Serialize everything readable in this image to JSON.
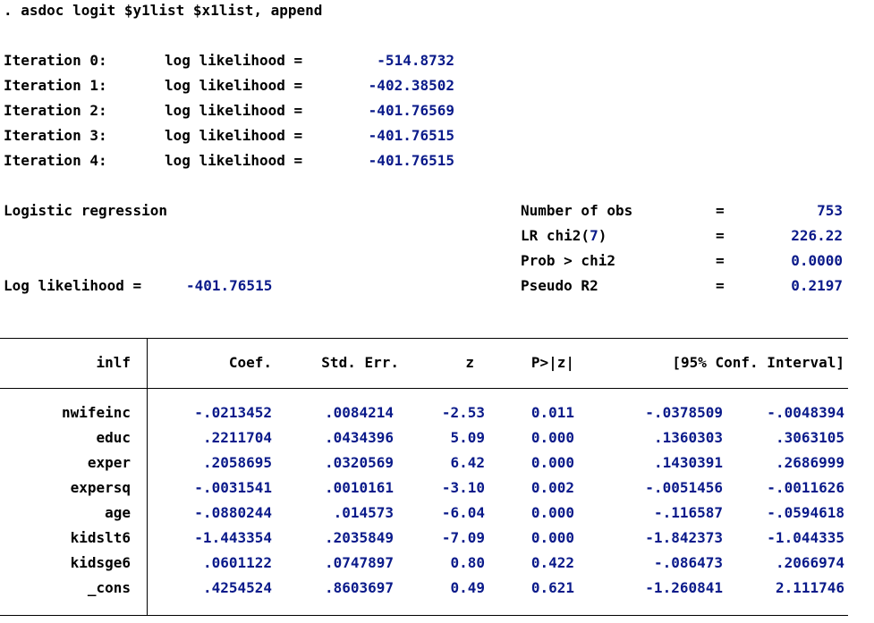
{
  "command": ". asdoc logit $y1list $x1list, append",
  "iterations": [
    {
      "label": "Iteration 0:",
      "ll_label": "log likelihood =",
      "value": "-514.8732"
    },
    {
      "label": "Iteration 1:",
      "ll_label": "log likelihood =",
      "value": "-402.38502"
    },
    {
      "label": "Iteration 2:",
      "ll_label": "log likelihood =",
      "value": "-401.76569"
    },
    {
      "label": "Iteration 3:",
      "ll_label": "log likelihood =",
      "value": "-401.76515"
    },
    {
      "label": "Iteration 4:",
      "ll_label": "log likelihood =",
      "value": "-401.76515"
    }
  ],
  "model": {
    "title": "Logistic regression",
    "ll_label": "Log likelihood =",
    "ll_value": "-401.76515"
  },
  "stats": [
    {
      "label": "Number of obs",
      "eq": "=",
      "value": "753"
    },
    {
      "label": "LR chi2(",
      "df": "7",
      "label_close": ")",
      "eq": "=",
      "value": "226.22"
    },
    {
      "label": "Prob > chi2",
      "eq": "=",
      "value": "0.0000"
    },
    {
      "label": "Pseudo R2",
      "eq": "=",
      "value": "0.2197"
    }
  ],
  "table": {
    "depvar": "inlf",
    "headers": [
      "Coef.",
      "Std. Err.",
      "z",
      "P>|z|",
      "[95% Conf. Interval]"
    ],
    "rows": [
      {
        "name": "nwifeinc",
        "coef": "-.0213452",
        "se": ".0084214",
        "z": "-2.53",
        "p": "0.011",
        "lo": "-.0378509",
        "hi": "-.0048394"
      },
      {
        "name": "educ",
        "coef": ".2211704",
        "se": ".0434396",
        "z": "5.09",
        "p": "0.000",
        "lo": ".1360303",
        "hi": ".3063105"
      },
      {
        "name": "exper",
        "coef": ".2058695",
        "se": ".0320569",
        "z": "6.42",
        "p": "0.000",
        "lo": ".1430391",
        "hi": ".2686999"
      },
      {
        "name": "expersq",
        "coef": "-.0031541",
        "se": ".0010161",
        "z": "-3.10",
        "p": "0.002",
        "lo": "-.0051456",
        "hi": "-.0011626"
      },
      {
        "name": "age",
        "coef": "-.0880244",
        "se": ".014573",
        "z": "-6.04",
        "p": "0.000",
        "lo": "-.116587",
        "hi": "-.0594618"
      },
      {
        "name": "kidslt6",
        "coef": "-1.443354",
        "se": ".2035849",
        "z": "-7.09",
        "p": "0.000",
        "lo": "-1.842373",
        "hi": "-1.044335"
      },
      {
        "name": "kidsge6",
        "coef": ".0601122",
        "se": ".0747897",
        "z": "0.80",
        "p": "0.422",
        "lo": "-.086473",
        "hi": ".2066974"
      },
      {
        "name": "_cons",
        "coef": ".4254524",
        "se": ".8603697",
        "z": "0.49",
        "p": "0.621",
        "lo": "-1.260841",
        "hi": "2.111746"
      }
    ]
  }
}
